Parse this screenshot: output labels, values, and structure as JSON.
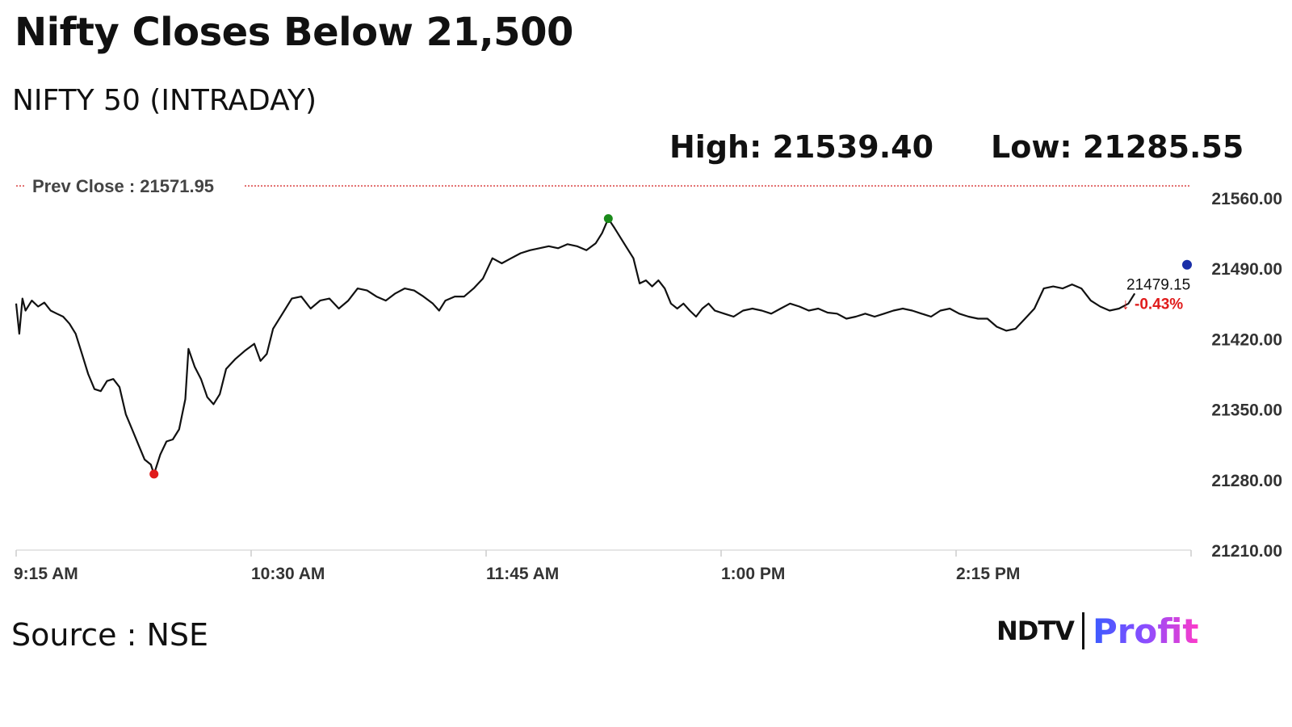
{
  "headline": "Nifty Closes Below 21,500",
  "subtitle": "NIFTY 50 (INTRADAY)",
  "high_text": "High: 21539.40",
  "low_text": "Low: 21285.55",
  "source_text": "Source : NSE",
  "logo": {
    "ndtv": "NDTV",
    "profit": "Profit"
  },
  "colors": {
    "line": "#111111",
    "prev_close_line": "#d94040",
    "high_marker": "#1a8a1a",
    "low_marker": "#e01b1b",
    "last_marker": "#1a2fa8",
    "negative": "#e01b1b",
    "grid": "#dddddd"
  },
  "chart_data": {
    "type": "line",
    "title": "NIFTY 50 (INTRADAY)",
    "xlabel": "",
    "ylabel": "",
    "x_ticks": [
      "9:15 AM",
      "10:30 AM",
      "11:45 AM",
      "1:00 PM",
      "2:15 PM"
    ],
    "y_ticks": [
      21560,
      21490,
      21420,
      21350,
      21280,
      21210
    ],
    "y_tick_labels": [
      "21560.00",
      "21490.00",
      "21420.00",
      "21350.00",
      "21280.00",
      "21210.00"
    ],
    "ylim": [
      21210,
      21560
    ],
    "x_range": [
      "9:15 AM",
      "3:30 PM"
    ],
    "prev_close": 21571.95,
    "prev_close_label": "Prev Close : 21571.95",
    "high": {
      "time": "12:24 PM",
      "value": 21539.4
    },
    "low": {
      "time": "9:59 AM",
      "value": 21285.55
    },
    "last": {
      "value": 21479.15,
      "label": "21479.15",
      "change_label": "-0.43%",
      "change_arrow": "↓"
    },
    "grid": false,
    "series": [
      {
        "points": [
          [
            "9:15",
            21455
          ],
          [
            "9:16",
            21425
          ],
          [
            "9:17",
            21460
          ],
          [
            "9:18",
            21448
          ],
          [
            "9:20",
            21458
          ],
          [
            "9:22",
            21452
          ],
          [
            "9:24",
            21456
          ],
          [
            "9:26",
            21448
          ],
          [
            "9:28",
            21445
          ],
          [
            "9:30",
            21442
          ],
          [
            "9:32",
            21435
          ],
          [
            "9:34",
            21425
          ],
          [
            "9:36",
            21405
          ],
          [
            "9:38",
            21385
          ],
          [
            "9:40",
            21370
          ],
          [
            "9:42",
            21368
          ],
          [
            "9:44",
            21378
          ],
          [
            "9:46",
            21380
          ],
          [
            "9:48",
            21372
          ],
          [
            "9:50",
            21345
          ],
          [
            "9:52",
            21330
          ],
          [
            "9:54",
            21315
          ],
          [
            "9:56",
            21300
          ],
          [
            "9:58",
            21295
          ],
          [
            "9:59",
            21285.55
          ],
          [
            "10:01",
            21305
          ],
          [
            "10:03",
            21318
          ],
          [
            "10:05",
            21320
          ],
          [
            "10:07",
            21330
          ],
          [
            "10:09",
            21360
          ],
          [
            "10:10",
            21410
          ],
          [
            "10:12",
            21392
          ],
          [
            "10:14",
            21380
          ],
          [
            "10:16",
            21362
          ],
          [
            "10:18",
            21355
          ],
          [
            "10:20",
            21365
          ],
          [
            "10:22",
            21390
          ],
          [
            "10:25",
            21400
          ],
          [
            "10:28",
            21408
          ],
          [
            "10:31",
            21415
          ],
          [
            "10:33",
            21398
          ],
          [
            "10:35",
            21405
          ],
          [
            "10:37",
            21430
          ],
          [
            "10:40",
            21445
          ],
          [
            "10:43",
            21460
          ],
          [
            "10:46",
            21462
          ],
          [
            "10:49",
            21450
          ],
          [
            "10:52",
            21458
          ],
          [
            "10:55",
            21460
          ],
          [
            "10:58",
            21450
          ],
          [
            "11:01",
            21458
          ],
          [
            "11:04",
            21470
          ],
          [
            "11:07",
            21468
          ],
          [
            "11:10",
            21462
          ],
          [
            "11:13",
            21458
          ],
          [
            "11:16",
            21465
          ],
          [
            "11:19",
            21470
          ],
          [
            "11:22",
            21468
          ],
          [
            "11:25",
            21462
          ],
          [
            "11:28",
            21455
          ],
          [
            "11:30",
            21448
          ],
          [
            "11:32",
            21458
          ],
          [
            "11:35",
            21462
          ],
          [
            "11:38",
            21462
          ],
          [
            "11:41",
            21470
          ],
          [
            "11:44",
            21480
          ],
          [
            "11:47",
            21500
          ],
          [
            "11:50",
            21495
          ],
          [
            "11:53",
            21500
          ],
          [
            "11:56",
            21505
          ],
          [
            "11:59",
            21508
          ],
          [
            "12:02",
            21510
          ],
          [
            "12:05",
            21512
          ],
          [
            "12:08",
            21510
          ],
          [
            "12:11",
            21514
          ],
          [
            "12:14",
            21512
          ],
          [
            "12:17",
            21508
          ],
          [
            "12:20",
            21515
          ],
          [
            "12:22",
            21525
          ],
          [
            "12:24",
            21539.4
          ],
          [
            "12:26",
            21530
          ],
          [
            "12:28",
            21520
          ],
          [
            "12:30",
            21510
          ],
          [
            "12:32",
            21500
          ],
          [
            "12:34",
            21475
          ],
          [
            "12:36",
            21478
          ],
          [
            "12:38",
            21472
          ],
          [
            "12:40",
            21478
          ],
          [
            "12:42",
            21470
          ],
          [
            "12:44",
            21455
          ],
          [
            "12:46",
            21450
          ],
          [
            "12:48",
            21455
          ],
          [
            "12:50",
            21448
          ],
          [
            "12:52",
            21442
          ],
          [
            "12:54",
            21450
          ],
          [
            "12:56",
            21455
          ],
          [
            "12:58",
            21448
          ],
          [
            "13:01",
            21445
          ],
          [
            "13:04",
            21442
          ],
          [
            "13:07",
            21448
          ],
          [
            "13:10",
            21450
          ],
          [
            "13:13",
            21448
          ],
          [
            "13:16",
            21445
          ],
          [
            "13:19",
            21450
          ],
          [
            "13:22",
            21455
          ],
          [
            "13:25",
            21452
          ],
          [
            "13:28",
            21448
          ],
          [
            "13:31",
            21450
          ],
          [
            "13:34",
            21446
          ],
          [
            "13:37",
            21445
          ],
          [
            "13:40",
            21440
          ],
          [
            "13:43",
            21442
          ],
          [
            "13:46",
            21445
          ],
          [
            "13:49",
            21442
          ],
          [
            "13:52",
            21445
          ],
          [
            "13:55",
            21448
          ],
          [
            "13:58",
            21450
          ],
          [
            "14:01",
            21448
          ],
          [
            "14:04",
            21445
          ],
          [
            "14:07",
            21442
          ],
          [
            "14:10",
            21448
          ],
          [
            "14:13",
            21450
          ],
          [
            "14:16",
            21445
          ],
          [
            "14:19",
            21442
          ],
          [
            "14:22",
            21440
          ],
          [
            "14:25",
            21440
          ],
          [
            "14:28",
            21432
          ],
          [
            "14:31",
            21428
          ],
          [
            "14:34",
            21430
          ],
          [
            "14:37",
            21440
          ],
          [
            "14:40",
            21450
          ],
          [
            "14:43",
            21470
          ],
          [
            "14:46",
            21472
          ],
          [
            "14:49",
            21470
          ],
          [
            "14:52",
            21474
          ],
          [
            "14:55",
            21470
          ],
          [
            "14:58",
            21458
          ],
          [
            "15:01",
            21452
          ],
          [
            "15:04",
            21448
          ],
          [
            "15:07",
            21450
          ],
          [
            "15:10",
            21455
          ],
          [
            "15:12",
            21465
          ]
        ]
      }
    ]
  }
}
